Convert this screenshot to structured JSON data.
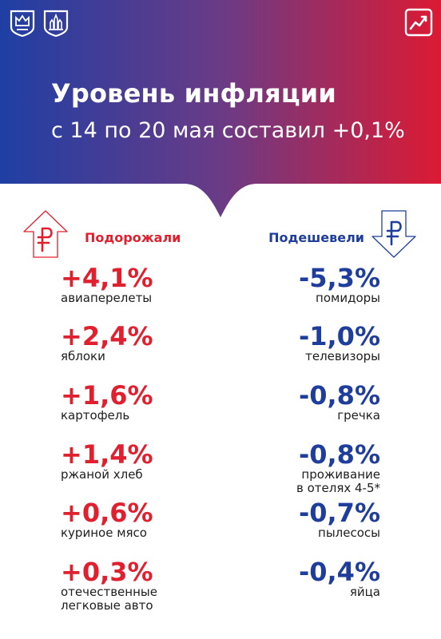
{
  "colors": {
    "gradient_start": "#1f3fa4",
    "gradient_end": "#dc1a33",
    "up": "#e0202e",
    "down": "#1f3e9c"
  },
  "icons": {
    "logos": [
      "city-emblem-icon",
      "kremlin-emblem-icon"
    ],
    "badge": "trend-chart-icon",
    "up": "ruble-arrow-up-icon",
    "down": "ruble-arrow-down-icon"
  },
  "header": {
    "title": "Уровень инфляции",
    "subtitle": "с 14 по 20 мая составил +0,1%"
  },
  "price_up": {
    "heading": "Подорожали",
    "items": [
      {
        "value": "+4,1%",
        "label": "авиаперелеты"
      },
      {
        "value": "+2,4%",
        "label": "яблоки"
      },
      {
        "value": "+1,6%",
        "label": "картофель"
      },
      {
        "value": "+1,4%",
        "label": "ржаной хлеб"
      },
      {
        "value": "+0,6%",
        "label": "куриное мясо"
      },
      {
        "value": "+0,3%",
        "label": "отечественные",
        "label2": "легковые авто"
      }
    ]
  },
  "price_down": {
    "heading": "Подешевели",
    "items": [
      {
        "value": "-5,3%",
        "label": "помидоры"
      },
      {
        "value": "-1,0%",
        "label": "телевизоры"
      },
      {
        "value": "-0,8%",
        "label": "гречка"
      },
      {
        "value": "-0,8%",
        "label": "проживание",
        "label2": "в отелях 4-5*"
      },
      {
        "value": "-0,7%",
        "label": "пылесосы"
      },
      {
        "value": "-0,4%",
        "label": "яйца"
      }
    ]
  }
}
